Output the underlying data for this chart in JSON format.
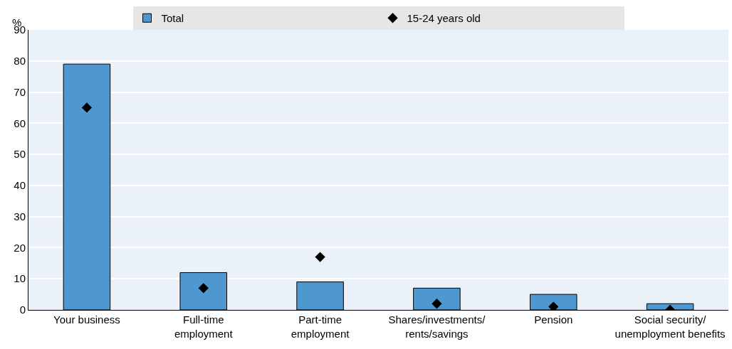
{
  "chart_data": {
    "type": "bar",
    "ylabel": "%",
    "categories": [
      "Your business",
      "Full-time employment",
      "Part-time employment",
      "Shares/investments/ rents/savings",
      "Pension",
      "Social security/ unemployment benefits"
    ],
    "series": [
      {
        "name": "Total",
        "color": "#4f97cf",
        "values": [
          79,
          12,
          9,
          7,
          5,
          2
        ]
      },
      {
        "name": "15-24 years old",
        "type": "scatter",
        "marker": "diamond",
        "color": "#000000",
        "values": [
          65,
          7,
          17,
          2,
          1,
          0
        ]
      }
    ],
    "ylim": [
      0,
      90
    ],
    "yticks": [
      0,
      10,
      20,
      30,
      40,
      50,
      60,
      70,
      80,
      90
    ],
    "grid": "y",
    "legend": "top"
  }
}
